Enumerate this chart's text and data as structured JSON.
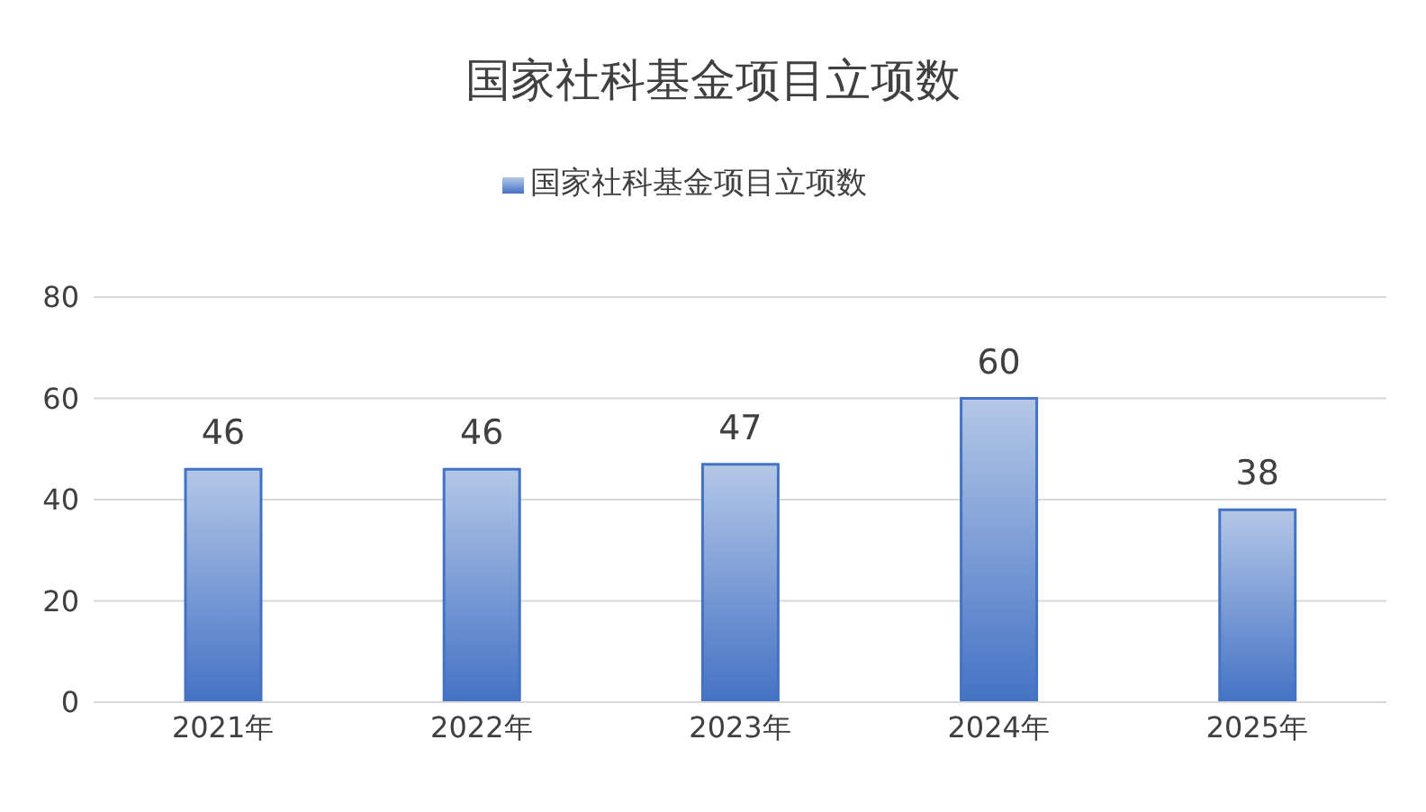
{
  "chart_data": {
    "type": "bar",
    "title": "国家社科基金项目立项数",
    "categories": [
      "2021年",
      "2022年",
      "2023年",
      "2024年",
      "2025年"
    ],
    "series": [
      {
        "name": "国家社科基金项目立项数",
        "color": "#4472c4",
        "values": [
          46,
          46,
          47,
          60,
          38
        ]
      }
    ],
    "ylim": [
      0,
      80
    ],
    "yticks": [
      0,
      20,
      40,
      60,
      80
    ],
    "grid": "y",
    "legend": "top",
    "data_labels": true
  }
}
